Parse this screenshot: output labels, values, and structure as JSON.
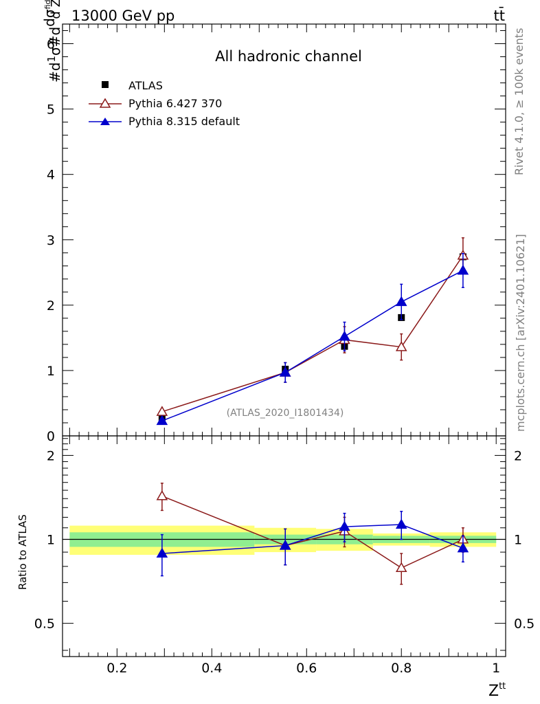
{
  "header": {
    "left": "13000 GeV pp",
    "right": "tt̄"
  },
  "side": {
    "top": "Rivet 4.1.0, ≥ 100k events",
    "bottom": "mcplots.cern.ch [arXiv:2401.10621]"
  },
  "chart_data": {
    "type": "scatter",
    "title": "All hadronic channel",
    "watermark": "(ATLAS_2020_I1801434)",
    "xlabel": "Z^tt",
    "ylabel_top": "#d 1/σ #d dσ^fid / d Z^tt",
    "ylabel_ratio": "Ratio to ATLAS",
    "xlim": [
      0.085,
      1.02
    ],
    "ylim": [
      0,
      6.3
    ],
    "ratio_ylim": [
      0.38,
      2.35
    ],
    "xticks": [
      "0.2",
      "0.4",
      "0.6",
      "0.8",
      "1"
    ],
    "yticks": [
      "0",
      "1",
      "2",
      "3",
      "4",
      "5",
      "6"
    ],
    "ratio_yticks": [
      "0.5",
      "1",
      "2"
    ],
    "x": [
      0.295,
      0.555,
      0.68,
      0.8,
      0.93
    ],
    "bins": [
      [
        0.1,
        0.49
      ],
      [
        0.49,
        0.62
      ],
      [
        0.62,
        0.74
      ],
      [
        0.74,
        0.86
      ],
      [
        0.86,
        1.0
      ]
    ],
    "legend": [
      "ATLAS",
      "Pythia 6.427 370",
      "Pythia 8.315 default"
    ],
    "series": [
      {
        "name": "ATLAS",
        "color": "#000000",
        "marker": "square",
        "values": [
          0.26,
          1.02,
          1.37,
          1.81,
          2.74
        ],
        "band_inner": [
          0.06,
          0.04,
          0.04,
          0.03,
          0.03
        ],
        "band_outer": [
          0.12,
          0.1,
          0.09,
          0.05,
          0.06
        ]
      },
      {
        "name": "Pythia 6.427 370",
        "color": "#8b1a1a",
        "marker": "open-triangle",
        "values": [
          0.37,
          0.97,
          1.47,
          1.36,
          2.76
        ],
        "err": [
          0.04,
          0.15,
          0.2,
          0.2,
          0.27
        ],
        "ratio": [
          1.43,
          0.95,
          1.07,
          0.79,
          1.0
        ],
        "ratio_err": [
          0.16,
          0.14,
          0.13,
          0.1,
          0.1
        ]
      },
      {
        "name": "Pythia 8.315 default",
        "color": "#0000cc",
        "marker": "filled-triangle",
        "values": [
          0.23,
          0.97,
          1.52,
          2.05,
          2.53
        ],
        "err": [
          0.04,
          0.15,
          0.22,
          0.27,
          0.26
        ],
        "ratio": [
          0.89,
          0.95,
          1.11,
          1.13,
          0.93
        ],
        "ratio_err": [
          0.15,
          0.14,
          0.13,
          0.13,
          0.1
        ]
      }
    ]
  }
}
